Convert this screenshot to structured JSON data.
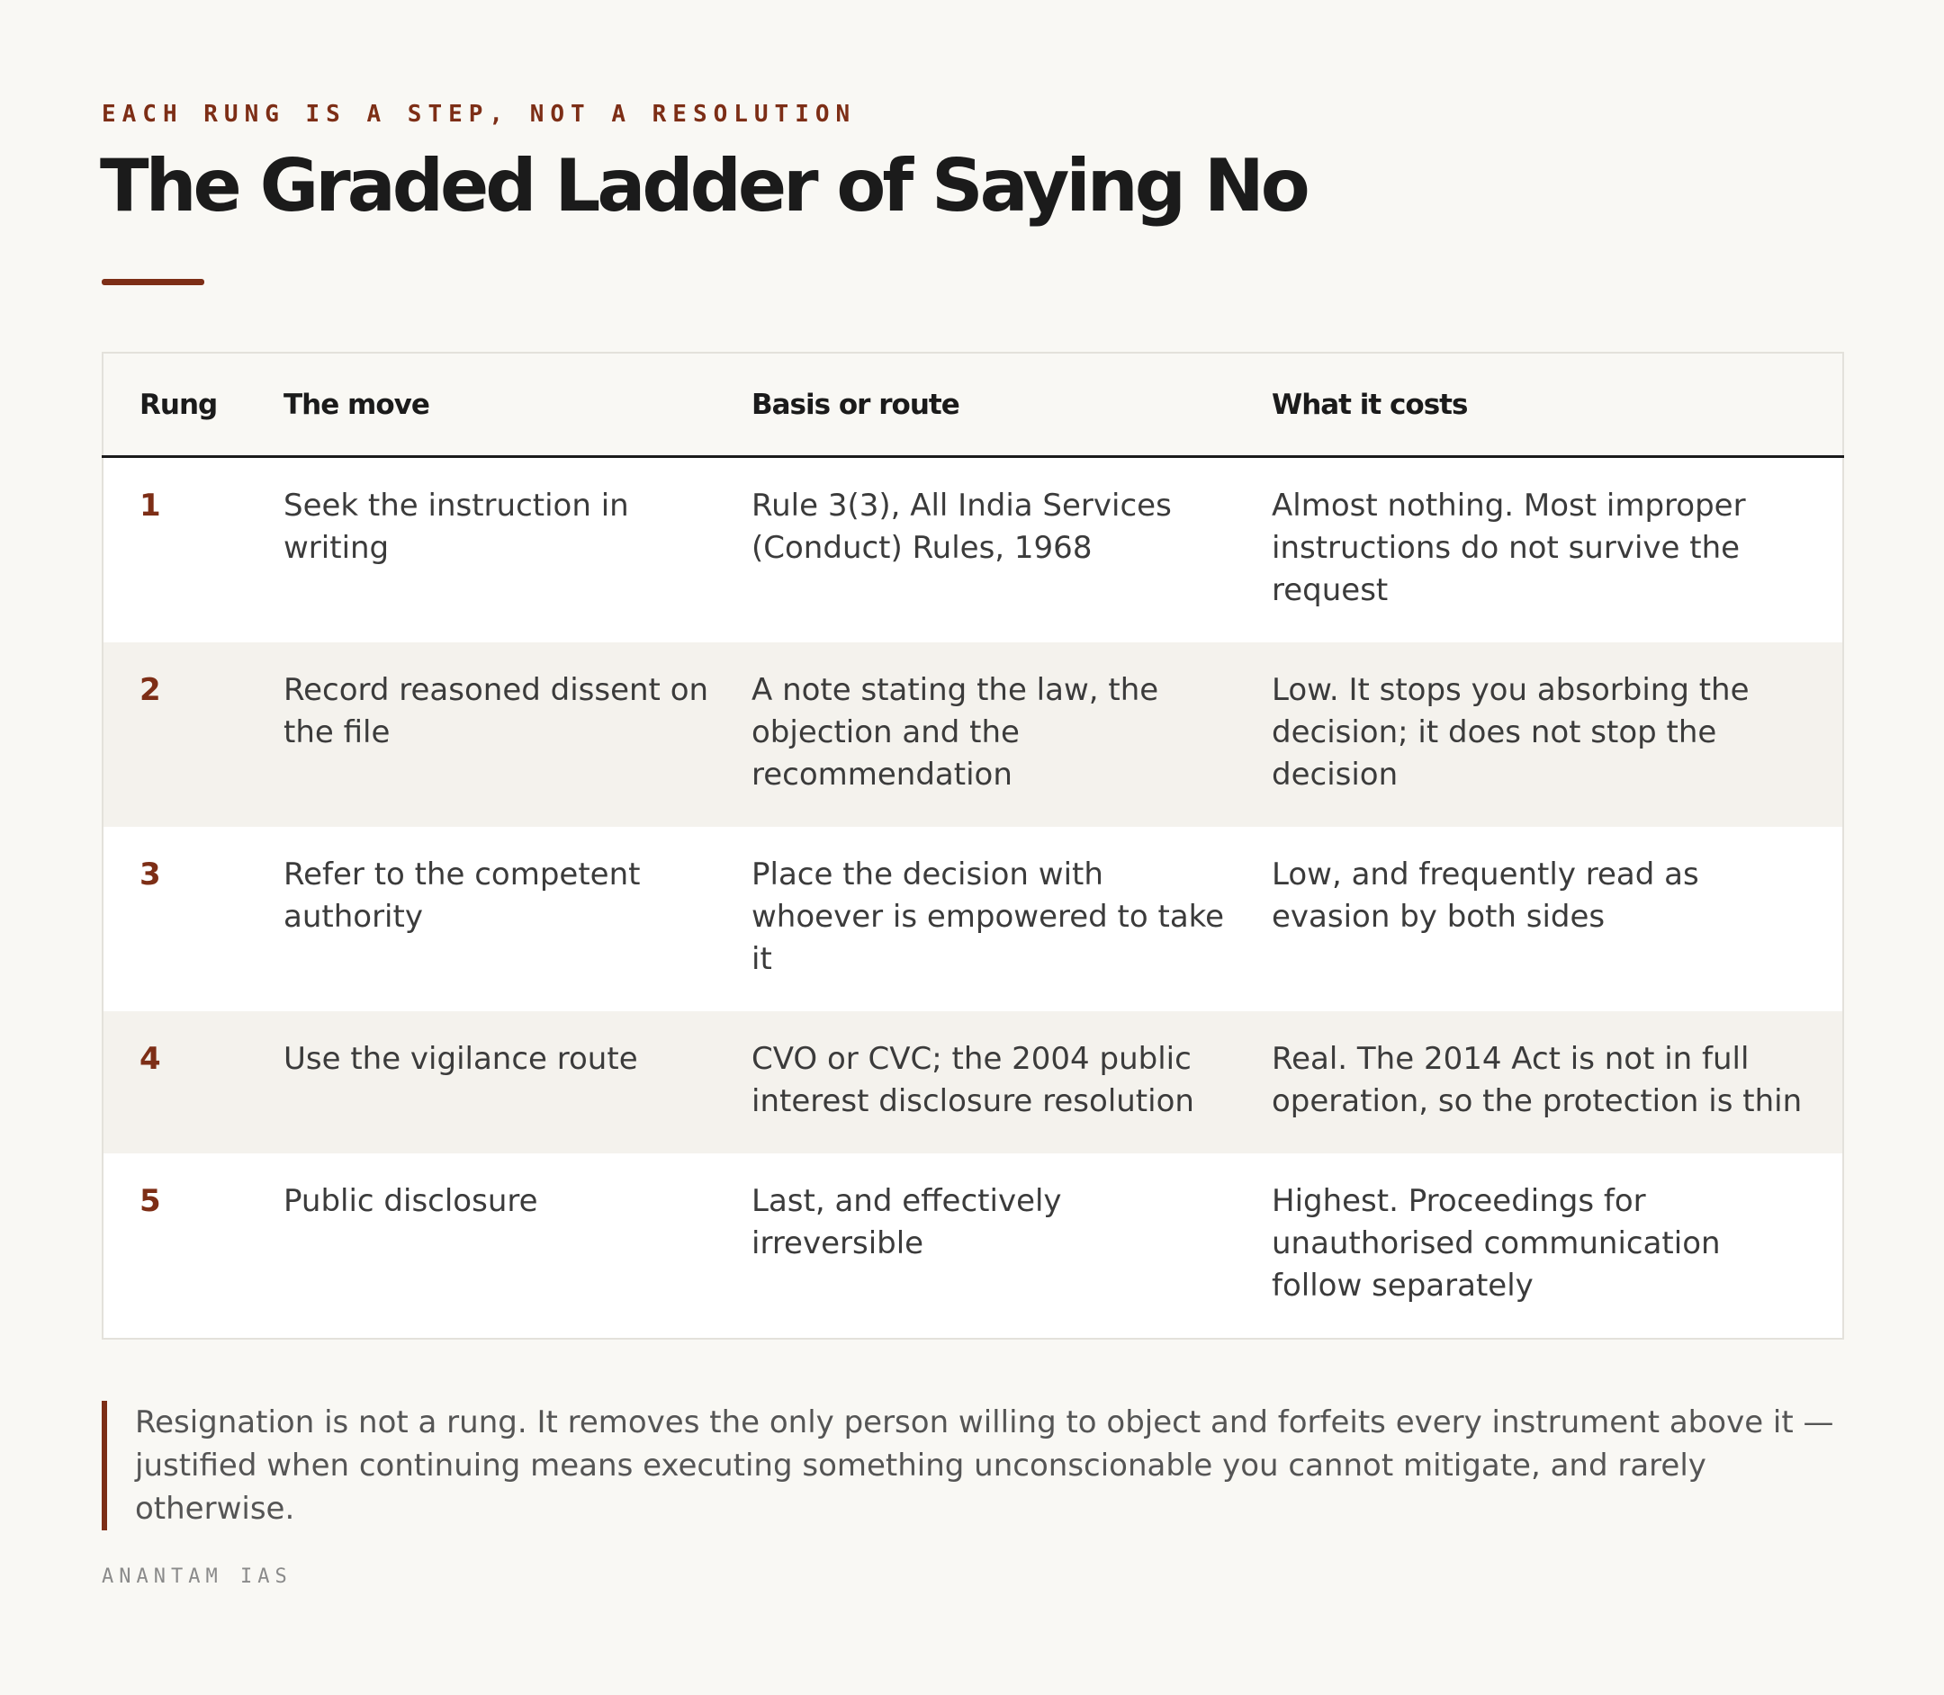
{
  "header": {
    "eyebrow": "EACH RUNG IS A STEP, NOT A RESOLUTION",
    "title": "The Graded Ladder of Saying No"
  },
  "table": {
    "headers": [
      "Rung",
      "The move",
      "Basis or route",
      "What it costs"
    ],
    "rows": [
      [
        "1",
        "Seek the instruction in writing",
        "Rule 3(3), All India Services (Conduct) Rules, 1968",
        "Almost nothing. Most improper instructions do not survive the request"
      ],
      [
        "2",
        "Record reasoned dissent on the file",
        "A note stating the law, the objection and the recommendation",
        "Low. It stops you absorbing the decision; it does not stop the decision"
      ],
      [
        "3",
        "Refer to the competent authority",
        "Place the decision with whoever is empowered to take it",
        "Low, and frequently read as evasion by both sides"
      ],
      [
        "4",
        "Use the vigilance route",
        "CVO or CVC; the 2004 public interest disclosure resolution",
        "Real. The 2014 Act is not in full operation, so the protection is thin"
      ],
      [
        "5",
        "Public disclosure",
        "Last, and effectively irreversible",
        "Highest. Proceedings for unauthorised communication follow separately"
      ]
    ]
  },
  "note": "Resignation is not a rung. It removes the only person willing to object and forfeits every instrument above it — justified when continuing means executing something unconscionable you cannot mitigate, and rarely otherwise.",
  "footer": "ANANTAM IAS"
}
